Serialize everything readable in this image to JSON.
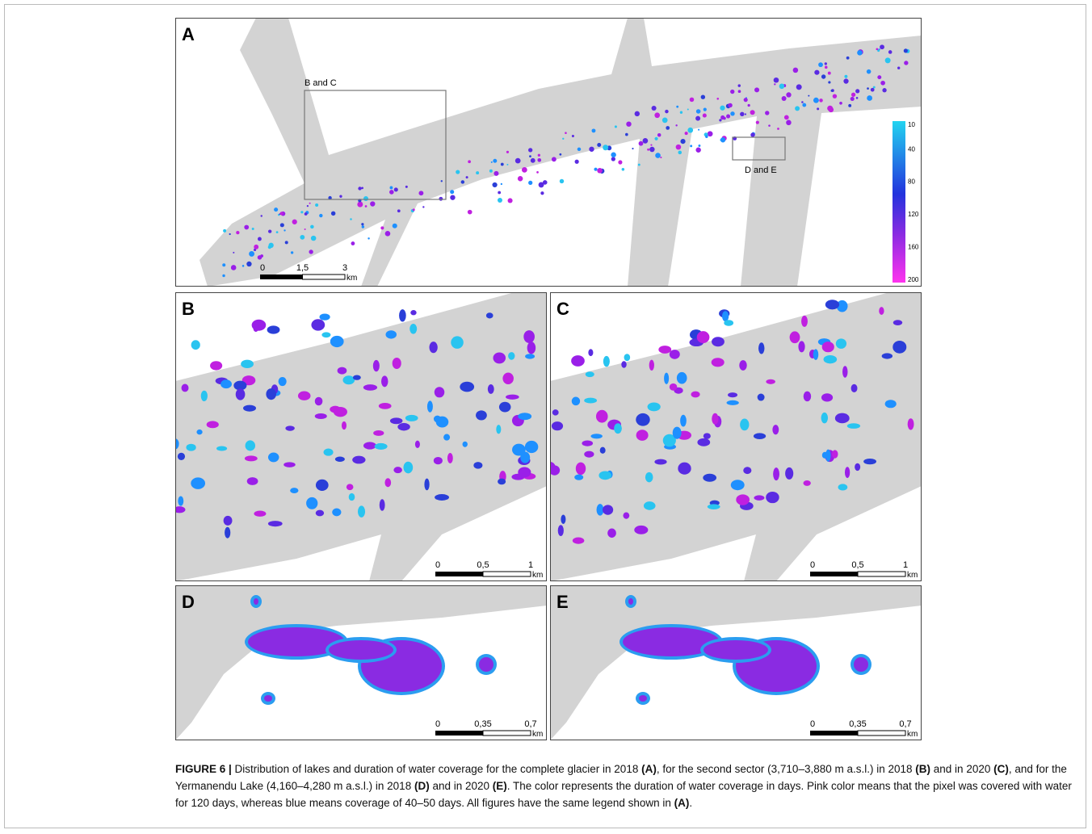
{
  "figure": {
    "panels": [
      {
        "letter": "A",
        "boxes": [
          "B and C",
          "D and E"
        ],
        "scale": {
          "ticks": [
            "0",
            "1,5",
            "3"
          ],
          "unit": "km"
        },
        "legend": [
          10,
          40,
          80,
          120,
          160,
          200
        ]
      },
      {
        "letter": "B",
        "scale": {
          "ticks": [
            "0",
            "0,5",
            "1"
          ],
          "unit": "km"
        }
      },
      {
        "letter": "C",
        "scale": {
          "ticks": [
            "0",
            "0,5",
            "1"
          ],
          "unit": "km"
        }
      },
      {
        "letter": "D",
        "scale": {
          "ticks": [
            "0",
            "0,35",
            "0,7"
          ],
          "unit": "km"
        }
      },
      {
        "letter": "E",
        "scale": {
          "ticks": [
            "0",
            "0,35",
            "0,7"
          ],
          "unit": "km"
        }
      }
    ],
    "caption": [
      {
        "text": "FIGURE 6 | ",
        "bold": true
      },
      {
        "text": "Distribution of lakes and duration of water coverage for the complete glacier in 2018 "
      },
      {
        "text": "(A)",
        "bold": true
      },
      {
        "text": ", for the second sector (3,710–3,880 m a.s.l.) in 2018 "
      },
      {
        "text": "(B)",
        "bold": true
      },
      {
        "text": " and in 2020 "
      },
      {
        "text": "(C)",
        "bold": true
      },
      {
        "text": ", and for the Yermanendu Lake (4,160–4,280 m a.s.l.) in 2018 "
      },
      {
        "text": "(D)",
        "bold": true
      },
      {
        "text": " and in 2020 "
      },
      {
        "text": "(E)",
        "bold": true
      },
      {
        "text": ". The color represents the duration of water coverage in days. Pink color means that the pixel was covered with water for 120 days, whereas blue means coverage of 40–50 days. All figures have the same legend shown in "
      },
      {
        "text": "(A)",
        "bold": true
      },
      {
        "text": "."
      }
    ]
  }
}
